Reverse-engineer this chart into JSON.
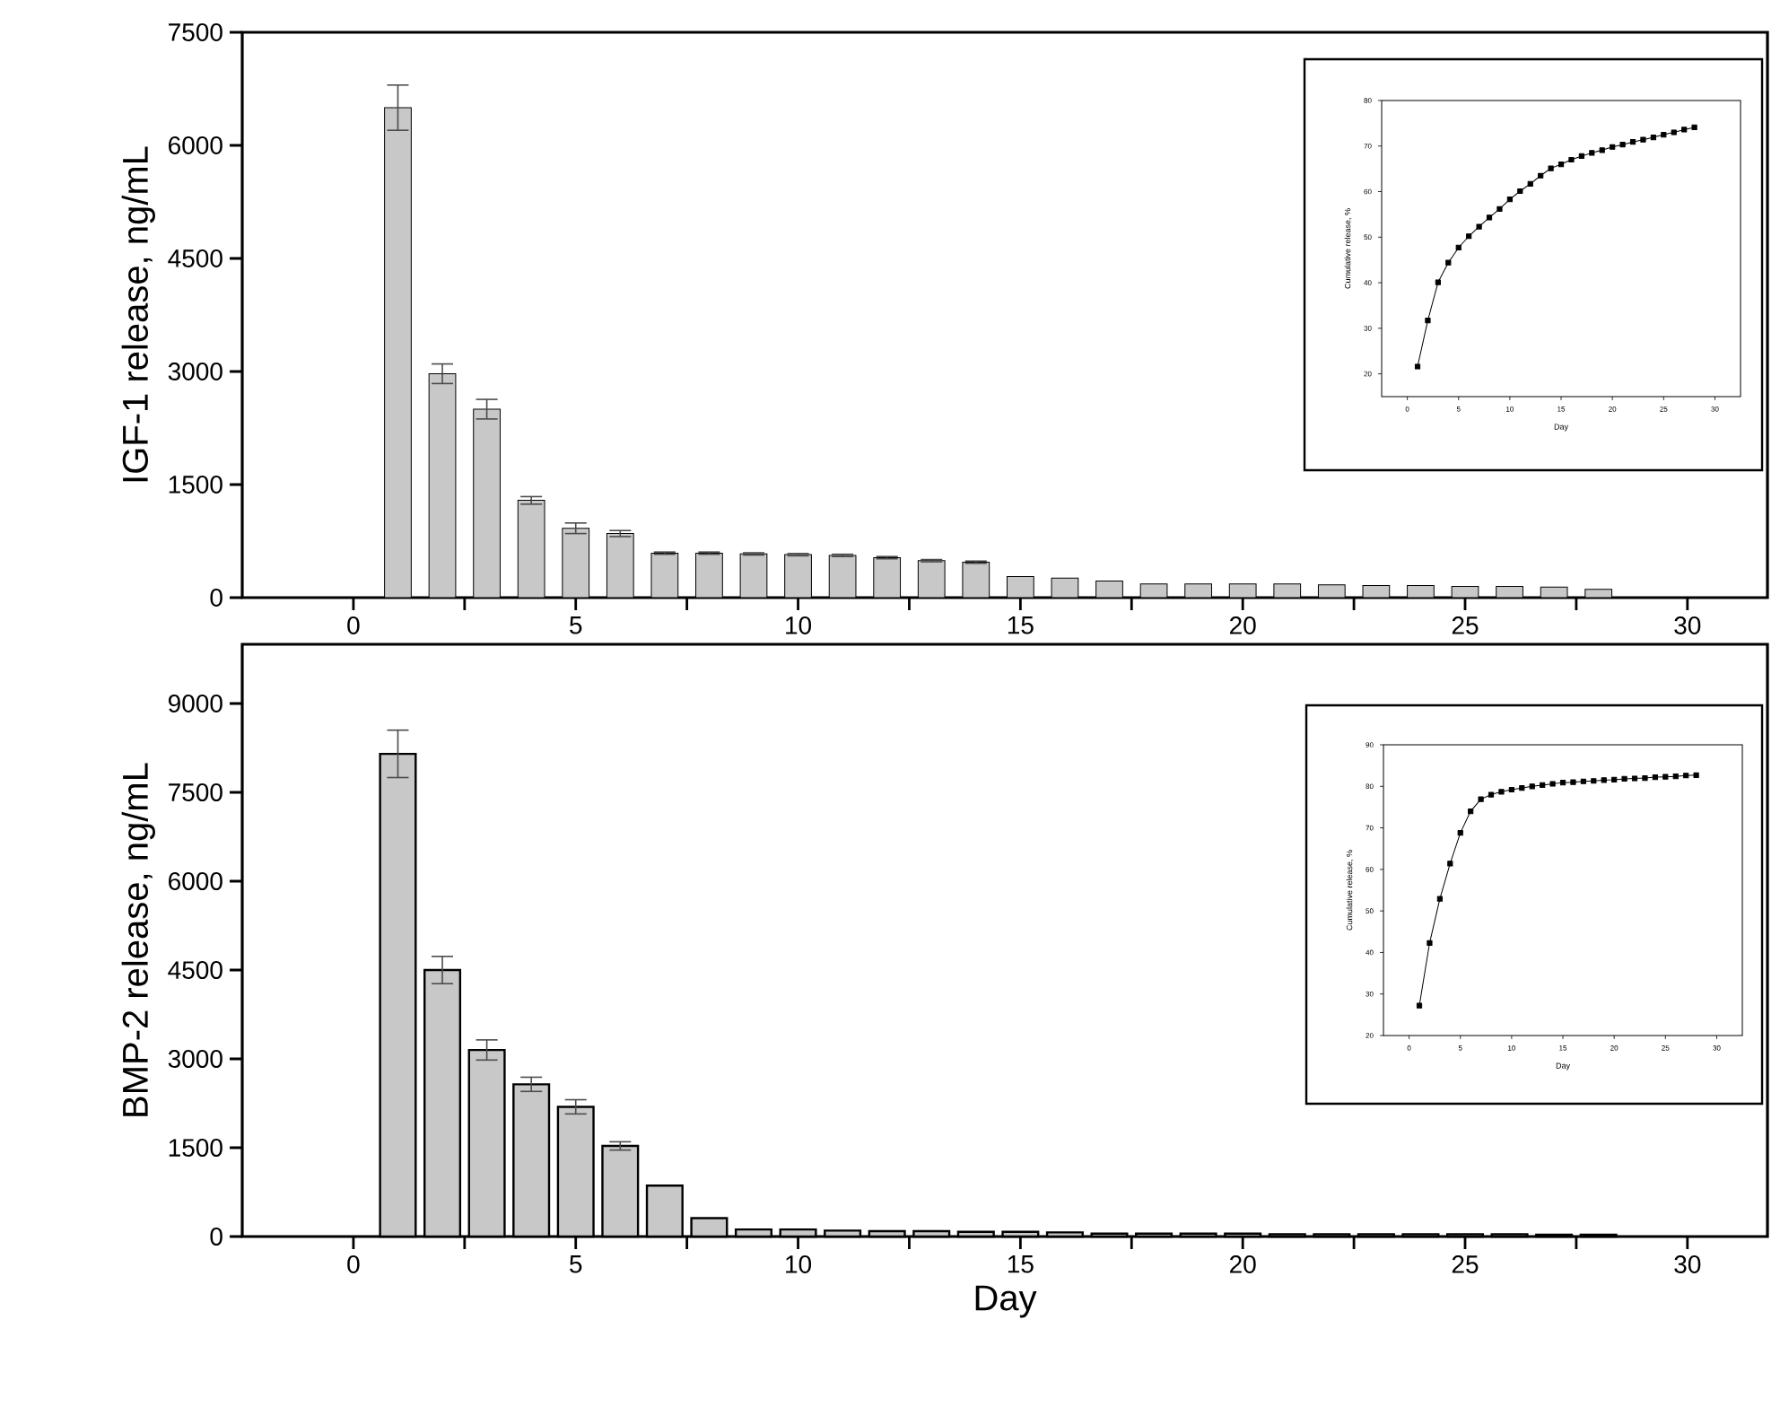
{
  "chart_data": [
    {
      "type": "bar",
      "ylabel": "IGF-1 release, ng/mL",
      "x": [
        1,
        2,
        3,
        4,
        5,
        6,
        7,
        8,
        9,
        10,
        11,
        12,
        13,
        14,
        15,
        16,
        17,
        18,
        19,
        20,
        21,
        22,
        23,
        24,
        25,
        26,
        27,
        28
      ],
      "series": [
        {
          "color": "#c8c8c8",
          "values": [
            6500,
            2970,
            2500,
            1290,
            920,
            850,
            590,
            590,
            580,
            570,
            560,
            530,
            490,
            470,
            280,
            260,
            220,
            180,
            180,
            180,
            180,
            170,
            160,
            160,
            150,
            150,
            140,
            110
          ],
          "errors": [
            300,
            130,
            130,
            50,
            70,
            40,
            15,
            15,
            15,
            15,
            15,
            15,
            15,
            15,
            null,
            null,
            null,
            null,
            null,
            null,
            null,
            null,
            null,
            null,
            null,
            null,
            null,
            null
          ]
        }
      ],
      "xlim": [
        -2.5,
        31.8
      ],
      "ylim": [
        0,
        7500
      ],
      "yticks": [
        0,
        1500,
        3000,
        4500,
        6000,
        7500
      ],
      "xticks": [
        0,
        {
          "value": 2.5,
          "label": null
        },
        5,
        {
          "value": 7.5,
          "label": null
        },
        10,
        {
          "value": 12.5,
          "label": null
        },
        15,
        {
          "value": 17.5,
          "label": null
        },
        20,
        {
          "value": 22.5,
          "label": null
        },
        25,
        {
          "value": 27.5,
          "label": null
        },
        30
      ]
    },
    {
      "type": "line",
      "xlabel": "Day",
      "ylabel": "Cumulative release, %",
      "marker": "square",
      "x": [
        1,
        2,
        3,
        4,
        5,
        6,
        7,
        8,
        9,
        10,
        11,
        12,
        13,
        14,
        15,
        16,
        17,
        18,
        19,
        20,
        21,
        22,
        23,
        24,
        25,
        26,
        27,
        28
      ],
      "series": [
        {
          "color": "#000000",
          "values": [
            21.6,
            31.7,
            40.1,
            44.4,
            47.7,
            50.2,
            52.3,
            54.3,
            56.2,
            58.3,
            60.1,
            61.7,
            63.5,
            65.1,
            66,
            67,
            67.8,
            68.5,
            69.1,
            69.8,
            70.3,
            70.9,
            71.4,
            71.9,
            72.5,
            73,
            73.6,
            74.1
          ]
        }
      ],
      "xlim": [
        -2.5,
        32.5
      ],
      "ylim": [
        15,
        80
      ],
      "xticks": [
        0,
        5,
        10,
        15,
        20,
        25,
        30
      ],
      "yticks": [
        20,
        30,
        40,
        50,
        60,
        70,
        80
      ]
    },
    {
      "type": "bar",
      "xlabel": "Day",
      "ylabel": "BMP-2 release, ng/mL",
      "x": [
        1,
        2,
        3,
        4,
        5,
        6,
        7,
        8,
        9,
        10,
        11,
        12,
        13,
        14,
        15,
        16,
        17,
        18,
        19,
        20,
        21,
        22,
        23,
        24,
        25,
        26,
        27,
        28
      ],
      "series": [
        {
          "color": "#c8c8c8",
          "values": [
            8150,
            4500,
            3150,
            2570,
            2190,
            1530,
            860,
            310,
            120,
            120,
            100,
            90,
            90,
            80,
            80,
            70,
            50,
            50,
            50,
            50,
            40,
            40,
            40,
            40,
            40,
            40,
            30,
            30
          ],
          "errors": [
            400,
            230,
            170,
            120,
            120,
            70,
            null,
            null,
            null,
            null,
            null,
            null,
            null,
            null,
            null,
            null,
            null,
            null,
            null,
            null,
            null,
            null,
            null,
            null,
            null,
            null,
            null,
            null
          ]
        }
      ],
      "xlim": [
        -2.5,
        31.8
      ],
      "ylim": [
        0,
        10000
      ],
      "yticks": [
        0,
        1500,
        3000,
        4500,
        6000,
        7500,
        9000
      ],
      "xticks": [
        0,
        {
          "value": 2.5,
          "label": null
        },
        5,
        {
          "value": 7.5,
          "label": null
        },
        10,
        {
          "value": 12.5,
          "label": null
        },
        15,
        {
          "value": 17.5,
          "label": null
        },
        20,
        {
          "value": 22.5,
          "label": null
        },
        25,
        {
          "value": 27.5,
          "label": null
        },
        30
      ]
    },
    {
      "type": "line",
      "xlabel": "Day",
      "ylabel": "Cumulative release, %",
      "marker": "square",
      "x": [
        1,
        2,
        3,
        4,
        5,
        6,
        7,
        8,
        9,
        10,
        11,
        12,
        13,
        14,
        15,
        16,
        17,
        18,
        19,
        20,
        21,
        22,
        23,
        24,
        25,
        26,
        27,
        28
      ],
      "series": [
        {
          "color": "#000000",
          "values": [
            27.2,
            42.3,
            52.9,
            61.4,
            68.8,
            74,
            76.9,
            78,
            78.7,
            79.2,
            79.6,
            80,
            80.3,
            80.6,
            80.9,
            81,
            81.2,
            81.3,
            81.5,
            81.6,
            81.8,
            81.9,
            82,
            82.2,
            82.3,
            82.4,
            82.6,
            82.7
          ]
        }
      ],
      "xlim": [
        -2.5,
        32.5
      ],
      "ylim": [
        20,
        90
      ],
      "xticks": [
        0,
        5,
        10,
        15,
        20,
        25,
        30
      ],
      "yticks": [
        20,
        30,
        40,
        50,
        60,
        70,
        80,
        90
      ]
    }
  ]
}
